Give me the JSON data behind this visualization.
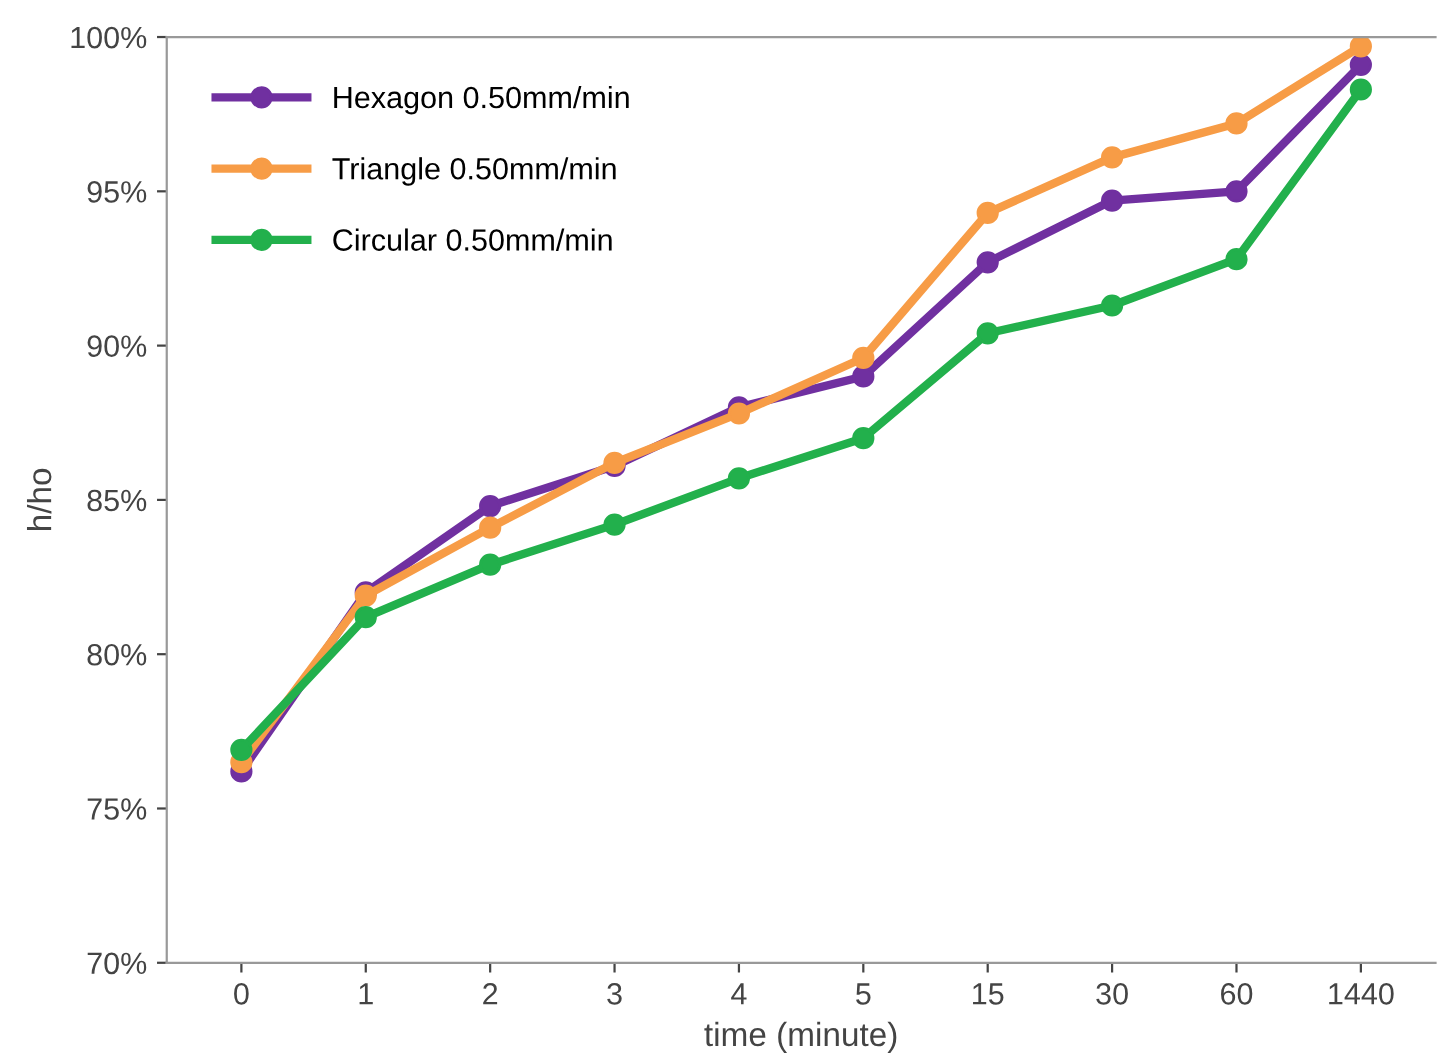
{
  "chart_data": {
    "type": "line",
    "xlabel": "time (minute)",
    "ylabel": "h/ho",
    "categories": [
      "0",
      "1",
      "2",
      "3",
      "4",
      "5",
      "15",
      "30",
      "60",
      "1440"
    ],
    "ylim": [
      70,
      100
    ],
    "yticks": [
      {
        "value": 70,
        "label": "70%"
      },
      {
        "value": 75,
        "label": "75%"
      },
      {
        "value": 80,
        "label": "80%"
      },
      {
        "value": 85,
        "label": "85%"
      },
      {
        "value": 90,
        "label": "90%"
      },
      {
        "value": 95,
        "label": "95%"
      },
      {
        "value": 100,
        "label": "100%"
      }
    ],
    "grid": false,
    "legend": "top left",
    "marker": "circle",
    "line_style": "solid",
    "series": [
      {
        "name": "Hexagon 0.50mm/min",
        "color": "#7030a0",
        "values": [
          76.2,
          82.0,
          84.8,
          86.1,
          88.0,
          89.0,
          92.7,
          94.7,
          95.0,
          99.1
        ]
      },
      {
        "name": "Triangle 0.50mm/min",
        "color": "#f79c46",
        "values": [
          76.5,
          81.9,
          84.1,
          86.2,
          87.8,
          89.6,
          94.3,
          96.1,
          97.2,
          99.7
        ]
      },
      {
        "name": "Circular 0.50mm/min",
        "color": "#22b04c",
        "values": [
          76.9,
          81.2,
          82.9,
          84.2,
          85.7,
          87.0,
          90.4,
          91.3,
          92.8,
          98.3
        ]
      }
    ]
  }
}
